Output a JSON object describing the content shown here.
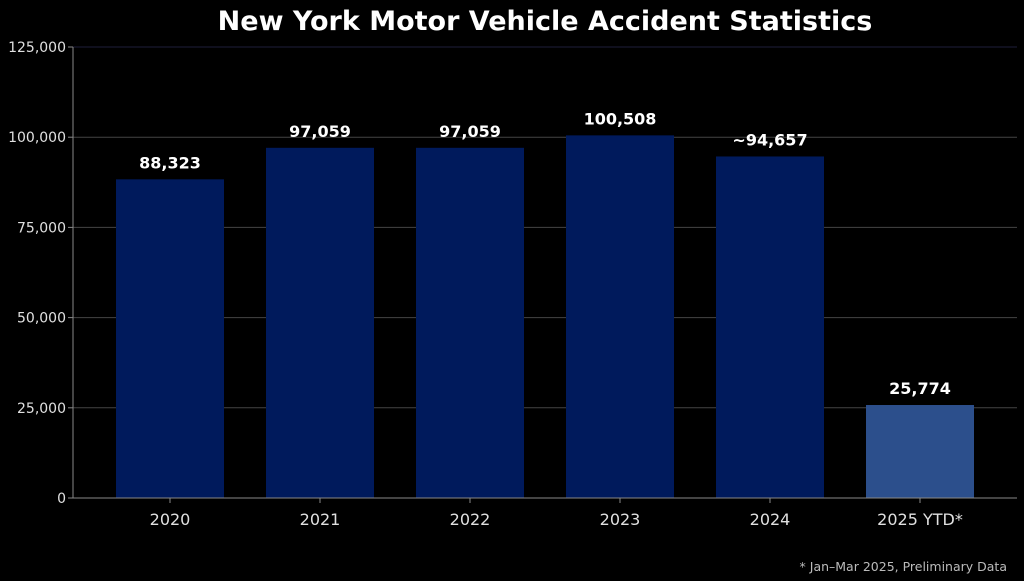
{
  "chart_data": {
    "type": "bar",
    "title": "New York Motor Vehicle Accident Statistics",
    "categories": [
      "2020",
      "2021",
      "2022",
      "2023",
      "2024",
      "2025 YTD*"
    ],
    "values": [
      88323,
      97059,
      97059,
      100508,
      94657,
      25774
    ],
    "data_labels": [
      "88,323",
      "97,059",
      "97,059",
      "100,508",
      "~94,657",
      "25,774"
    ],
    "bar_colors": [
      "#001a5c",
      "#001a5c",
      "#001a5c",
      "#001a5c",
      "#001a5c",
      "#2c4f8c"
    ],
    "ylim": [
      0,
      125000
    ],
    "yticks": [
      0,
      25000,
      50000,
      75000,
      100000,
      125000
    ],
    "ytick_labels": [
      "0",
      "25,000",
      "50,000",
      "75,000",
      "100,000",
      "125,000"
    ],
    "grid": true,
    "xlabel": "",
    "ylabel": "",
    "footnote": "* Jan–Mar 2025, Preliminary Data"
  }
}
